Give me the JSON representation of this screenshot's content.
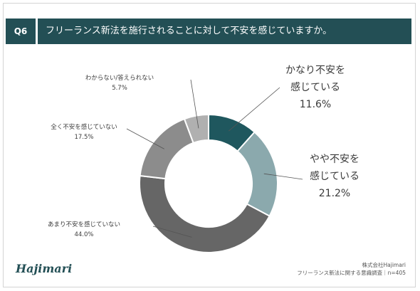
{
  "header": {
    "question_number": "Q6",
    "question": "フリーランス新法を施行されることに対して不安を感じていますか。"
  },
  "colors": {
    "header_bg": "#234f55",
    "very_anxious": "#1f575e",
    "somewhat_anxious": "#8ba9ad",
    "not_very": "#666666",
    "not_at_all": "#8c8c8c",
    "dont_know": "#b0b0b0"
  },
  "chart_data": {
    "type": "pie",
    "donut": true,
    "start": "top, clockwise",
    "slices": [
      {
        "label": "かなり不安を感じている",
        "label_lines": [
          "かなり不安を",
          "感じている"
        ],
        "pct_label": "11.6%",
        "value": 11.6,
        "color": "#1f575e"
      },
      {
        "label": "やや不安を感じている",
        "label_lines": [
          "やや不安を",
          "感じている"
        ],
        "pct_label": "21.2%",
        "value": 21.2,
        "color": "#8ba9ad"
      },
      {
        "label": "あまり不安を感じていない",
        "label_lines": [
          "あまり不安を感じていない"
        ],
        "pct_label": "44.0%",
        "value": 44.0,
        "color": "#666666"
      },
      {
        "label": "全く不安を感じていない",
        "label_lines": [
          "全く不安を感じていない"
        ],
        "pct_label": "17.5%",
        "value": 17.5,
        "color": "#8c8c8c"
      },
      {
        "label": "わからない/答えられない",
        "label_lines": [
          "わからない/答えられない"
        ],
        "pct_label": "5.7%",
        "value": 5.7,
        "color": "#b0b0b0"
      }
    ]
  },
  "footer": {
    "logo": "Hajimari",
    "company": "株式会社Hajimari",
    "survey": "フリーランス新法に関する意識調査｜n=405"
  }
}
